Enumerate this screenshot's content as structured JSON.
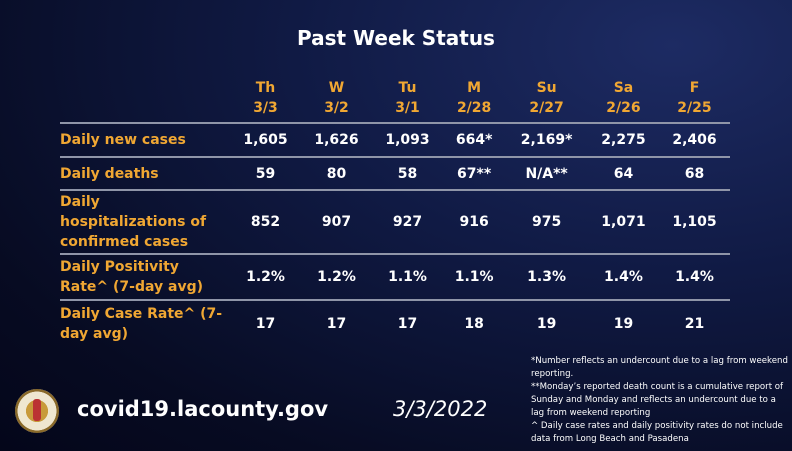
{
  "title": "Past Week Status",
  "columns": [
    {
      "day": "Th",
      "date": "3/3"
    },
    {
      "day": "W",
      "date": "3/2"
    },
    {
      "day": "Tu",
      "date": "3/1"
    },
    {
      "day": "M",
      "date": "2/28"
    },
    {
      "day": "Su",
      "date": "2/27"
    },
    {
      "day": "Sa",
      "date": "2/26"
    },
    {
      "day": "F",
      "date": "2/25"
    }
  ],
  "rows": [
    {
      "label": "Daily new cases",
      "values": [
        "1,605",
        "1,626",
        "1,093",
        "664*",
        "2,169*",
        "2,275",
        "2,406"
      ]
    },
    {
      "label": "Daily deaths",
      "values": [
        "59",
        "80",
        "58",
        "67**",
        "N/A**",
        "64",
        "68"
      ]
    },
    {
      "label": "Daily hospitalizations of confirmed cases",
      "values": [
        "852",
        "907",
        "927",
        "916",
        "975",
        "1,071",
        "1,105"
      ]
    },
    {
      "label": "Daily Positivity Rate^ (7-day avg)",
      "values": [
        "1.2%",
        "1.2%",
        "1.1%",
        "1.1%",
        "1.3%",
        "1.4%",
        "1.4%"
      ]
    },
    {
      "label": "Daily Case Rate^ (7-day avg)",
      "values": [
        "17",
        "17",
        "17",
        "18",
        "19",
        "19",
        "21"
      ]
    }
  ],
  "notes": [
    "*Number reflects an undercount due to a lag from weekend reporting.",
    "**Monday’s reported death count is a cumulative report of Sunday and Monday and reflects an undercount due to a lag from weekend reporting",
    "^ Daily case rates and daily positivity rates do not include data from Long Beach and Pasadena"
  ],
  "footer": {
    "url": "covid19.lacounty.gov",
    "date": "3/3/2022",
    "seal_text": "County of Los Angeles"
  },
  "colors": {
    "accent": "#f0a733"
  }
}
